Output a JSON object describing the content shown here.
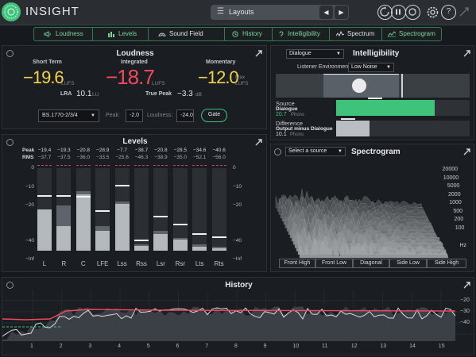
{
  "app": {
    "title": "INSIGHT"
  },
  "toolbar": {
    "layouts_label": "Layouts",
    "prev": "◀",
    "next": "▶",
    "icons": [
      "reset-icon",
      "pause-icon",
      "record-icon",
      "gear-icon",
      "help-icon"
    ]
  },
  "tabs": [
    {
      "label": "Loudness",
      "icon": "speaker-icon",
      "color": "#7ed39c"
    },
    {
      "label": "Levels",
      "icon": "levels-icon",
      "color": "#7ed39c"
    },
    {
      "label": "Sound Field",
      "icon": "soundfield-icon",
      "color": "#e0e2e4"
    },
    {
      "label": "History",
      "icon": "history-icon",
      "color": "#7ed39c"
    },
    {
      "label": "Intelligibility",
      "icon": "intelligibility-icon",
      "color": "#7ed39c"
    },
    {
      "label": "Spectrum",
      "icon": "spectrum-icon",
      "color": "#e0e2e4"
    },
    {
      "label": "Spectrogram",
      "icon": "spectrogram-icon",
      "color": "#7ed39c"
    }
  ],
  "loudness": {
    "title": "Loudness",
    "short_term": {
      "label": "Short Term",
      "value": "−19.6",
      "unit": "LUFS",
      "color": "#f2d44a"
    },
    "integrated": {
      "label": "Integrated",
      "value": "−18.7",
      "unit": "LUFS",
      "color": "#f04a5c"
    },
    "momentary": {
      "label": "Momentary",
      "value": "−12.0",
      "unit_top": "Max",
      "unit": "LUFS",
      "color": "#f2d44a"
    },
    "lra": {
      "label": "LRA",
      "value": "10.1",
      "unit": "LU"
    },
    "true_peak": {
      "label": "True Peak",
      "value": "−3.3",
      "unit": "dB"
    },
    "standard": "BS.1770-2/3/4",
    "peak": {
      "label": "Peak:",
      "value": "-2.0"
    },
    "loudness_target": {
      "label": "Loudness:",
      "value": "-24.0"
    },
    "gate_label": "Gate"
  },
  "levels": {
    "title": "Levels",
    "peak_label": "Peak",
    "rms_label": "RMS",
    "scale": [
      "0",
      "−10",
      "−20",
      "−40",
      "−Inf"
    ],
    "channels": [
      {
        "name": "L",
        "peak": "−19.4",
        "rms": "−37.7",
        "level": 0.5,
        "peak_level": 0.67,
        "dark_level": 0.42
      },
      {
        "name": "R",
        "peak": "−19.3",
        "rms": "−37.5",
        "level": 0.3,
        "peak_level": 0.67,
        "dark_level": 0.55
      },
      {
        "name": "C",
        "peak": "−20.8",
        "rms": "−36.0",
        "level": 0.68,
        "peak_level": 0.66,
        "dark_level": 0.72
      },
      {
        "name": "LFE",
        "peak": "−28.9",
        "rms": "−33.5",
        "level": 0.24,
        "peak_level": 0.49,
        "dark_level": 0.3
      },
      {
        "name": "Lss",
        "peak": "−7.7",
        "rms": "−25.6",
        "level": 0.57,
        "peak_level": 0.8,
        "dark_level": 0.6
      },
      {
        "name": "Rss",
        "peak": "−38.7",
        "rms": "−46.3",
        "level": 0.06,
        "peak_level": 0.13,
        "dark_level": 0.08
      },
      {
        "name": "Lsr",
        "peak": "−20.8",
        "rms": "−38.9",
        "level": 0.2,
        "peak_level": 0.42,
        "dark_level": 0.24
      },
      {
        "name": "Rsr",
        "peak": "−28.5",
        "rms": "−35.0",
        "level": 0.13,
        "peak_level": 0.33,
        "dark_level": 0.15
      },
      {
        "name": "Lts",
        "peak": "−34.6",
        "rms": "−52.1",
        "level": 0.05,
        "peak_level": 0.21,
        "dark_level": 0.08
      },
      {
        "name": "Rts",
        "peak": "−40.6",
        "rms": "−56.0",
        "level": 0.03,
        "peak_level": 0.17,
        "dark_level": 0.05
      }
    ]
  },
  "intelligibility": {
    "title": "Intelligibility",
    "source_select": "Dialogue",
    "env_label": "Listener Environment",
    "env_value": "Low Noise",
    "source": {
      "label": "Source",
      "name": "Dialogue",
      "value": "20.7",
      "unit": "Phons",
      "level": 0.74
    },
    "difference": {
      "label": "Difference",
      "name": "Output minus Dialogue",
      "value": "10.1",
      "unit": "Phons",
      "level": 0.25
    }
  },
  "spectrogram": {
    "title": "Spectrogram",
    "source_select": "Select a source",
    "freqs": [
      "20000",
      "10000",
      "5000",
      "2000",
      "1000",
      "500",
      "200",
      "100"
    ],
    "unit": "Hz",
    "views": [
      "Front High",
      "Front Low",
      "Diagonal",
      "Side Low",
      "Side High"
    ]
  },
  "history": {
    "title": "History",
    "x_labels": [
      "1",
      "2",
      "3",
      "4",
      "5",
      "6",
      "7",
      "8",
      "9",
      "10",
      "11",
      "12",
      "13",
      "14",
      "15"
    ],
    "y_labels": [
      "−20",
      "−30",
      "−40"
    ],
    "colors": {
      "integrated": "#f04a5c",
      "short_term": "#d9dcde",
      "momentary": "#7a7f85",
      "true_peak": "#3fc27a"
    }
  }
}
